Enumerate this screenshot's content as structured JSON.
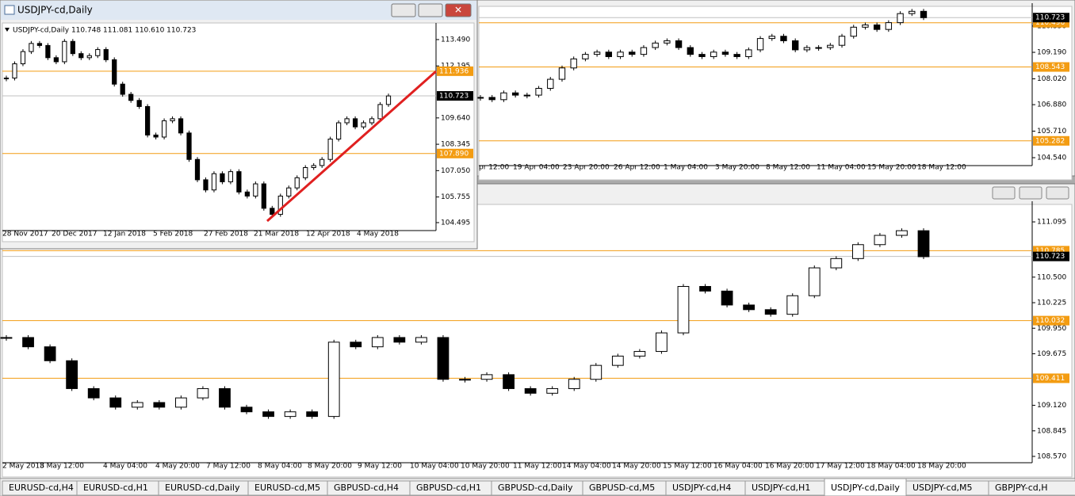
{
  "windows": [
    {
      "title": "USDJPY-cd,Daily",
      "info": "USDJPY-cd,Daily 110.748 111.081 110.610 110.723",
      "ylim": [
        104.26,
        114.15
      ],
      "yticks": [
        {
          "value": 113.49,
          "label": "113.490"
        },
        112.195,
        {
          "value": 109.64,
          "label": "109.640"
        },
        108.345,
        {
          "value": 107.05,
          "label": "107.050"
        },
        105.755,
        104.495
      ],
      "levels": [
        111.936,
        {
          "value": 107.89,
          "label": "107.890"
        }
      ],
      "last": 110.723,
      "xlabels": [
        "28 Nov 2017",
        "20 Dec 2017",
        "12 Jan 2018",
        "5 Feb 2018",
        "27 Feb 2018",
        "21 Mar 2018",
        "12 Apr 2018",
        "4 May 2018"
      ],
      "closes": [
        111.6,
        112.3,
        112.9,
        113.3,
        113.2,
        112.6,
        112.4,
        113.4,
        112.8,
        112.6,
        112.7,
        113.0,
        112.5,
        111.3,
        110.8,
        110.5,
        110.2,
        108.8,
        108.7,
        109.5,
        109.6,
        108.9,
        107.6,
        106.6,
        106.1,
        106.9,
        106.5,
        107.0,
        106.0,
        105.8,
        106.4,
        105.2,
        104.9,
        105.8,
        106.2,
        106.7,
        107.2,
        107.3,
        107.6,
        108.6,
        109.4,
        109.6,
        109.2,
        109.4,
        109.6,
        110.3,
        110.72
      ]
    },
    {
      "ylim": [
        104.33,
        111.22
      ],
      "yticks": [
        {
          "value": 110.35,
          "label": "110.350"
        },
        {
          "value": 109.19,
          "label": "109.190"
        },
        {
          "value": 108.02,
          "label": "108.020"
        },
        {
          "value": 106.88,
          "label": "106.880"
        },
        {
          "value": 105.71,
          "label": "105.710"
        },
        {
          "value": 104.54,
          "label": "104.540"
        }
      ],
      "levels": [
        110.496,
        108.543,
        105.282
      ],
      "last": 110.723,
      "xlabels": [
        "pr 12:00",
        "19 Apr 04:00",
        "23 Apr 20:00",
        "26 Apr 12:00",
        "1 May 04:00",
        "3 May 20:00",
        "8 May 12:00",
        "11 May 04:00",
        "15 May 20:00",
        "18 May 12:00"
      ],
      "closes": [
        107.2,
        107.1,
        107.4,
        107.3,
        107.3,
        107.6,
        108.0,
        108.5,
        108.9,
        109.1,
        109.2,
        109.0,
        109.2,
        109.1,
        109.4,
        109.6,
        109.7,
        109.4,
        109.1,
        109.0,
        109.2,
        109.1,
        109.0,
        109.3,
        109.8,
        109.9,
        109.7,
        109.3,
        109.4,
        109.4,
        109.5,
        109.9,
        110.3,
        110.4,
        110.2,
        110.5,
        110.9,
        111.0,
        110.72
      ]
    },
    {
      "ylim": [
        108.536,
        111.283
      ],
      "yticks": [
        111.095,
        {
          "value": 110.5,
          "label": "110.500"
        },
        110.225,
        {
          "value": 109.95,
          "label": "109.950"
        },
        109.675,
        {
          "value": 109.12,
          "label": "109.120"
        },
        108.845,
        {
          "value": 108.57,
          "label": "108.570"
        }
      ],
      "levels": [
        110.785,
        110.032,
        109.411
      ],
      "last": 110.723,
      "xlabels": [
        "2 May 2018",
        "3 May 12:00",
        "4 May 04:00",
        "4 May 20:00",
        "7 May 12:00",
        "8 May 04:00",
        "8 May 20:00",
        "9 May 12:00",
        "10 May 04:00",
        "10 May 20:00",
        "11 May 12:00",
        "14 May 04:00",
        "14 May 20:00",
        "15 May 12:00",
        "16 May 04:00",
        "16 May 20:00",
        "17 May 12:00",
        "18 May 04:00",
        "18 May 20:00"
      ],
      "closes": [
        109.85,
        109.75,
        109.6,
        109.3,
        109.2,
        109.1,
        109.15,
        109.1,
        109.2,
        109.3,
        109.1,
        109.05,
        109.0,
        109.05,
        109.0,
        109.8,
        109.75,
        109.85,
        109.8,
        109.85,
        109.4,
        109.4,
        109.45,
        109.3,
        109.25,
        109.3,
        109.4,
        109.55,
        109.65,
        109.7,
        109.9,
        110.4,
        110.35,
        110.2,
        110.15,
        110.1,
        110.3,
        110.6,
        110.7,
        110.85,
        110.95,
        111.0,
        110.72
      ]
    }
  ],
  "tabs": [
    "EURUSD-cd,H4",
    "EURUSD-cd,H1",
    "EURUSD-cd,Daily",
    "EURUSD-cd,M5",
    "GBPUSD-cd,H4",
    "GBPUSD-cd,H1",
    "GBPUSD-cd,Daily",
    "GBPUSD-cd,M5",
    "USDJPY-cd,H4",
    "USDJPY-cd,H1",
    "USDJPY-cd,Daily",
    "USDJPY-cd,M5",
    "GBPJPY-cd,H"
  ]
}
